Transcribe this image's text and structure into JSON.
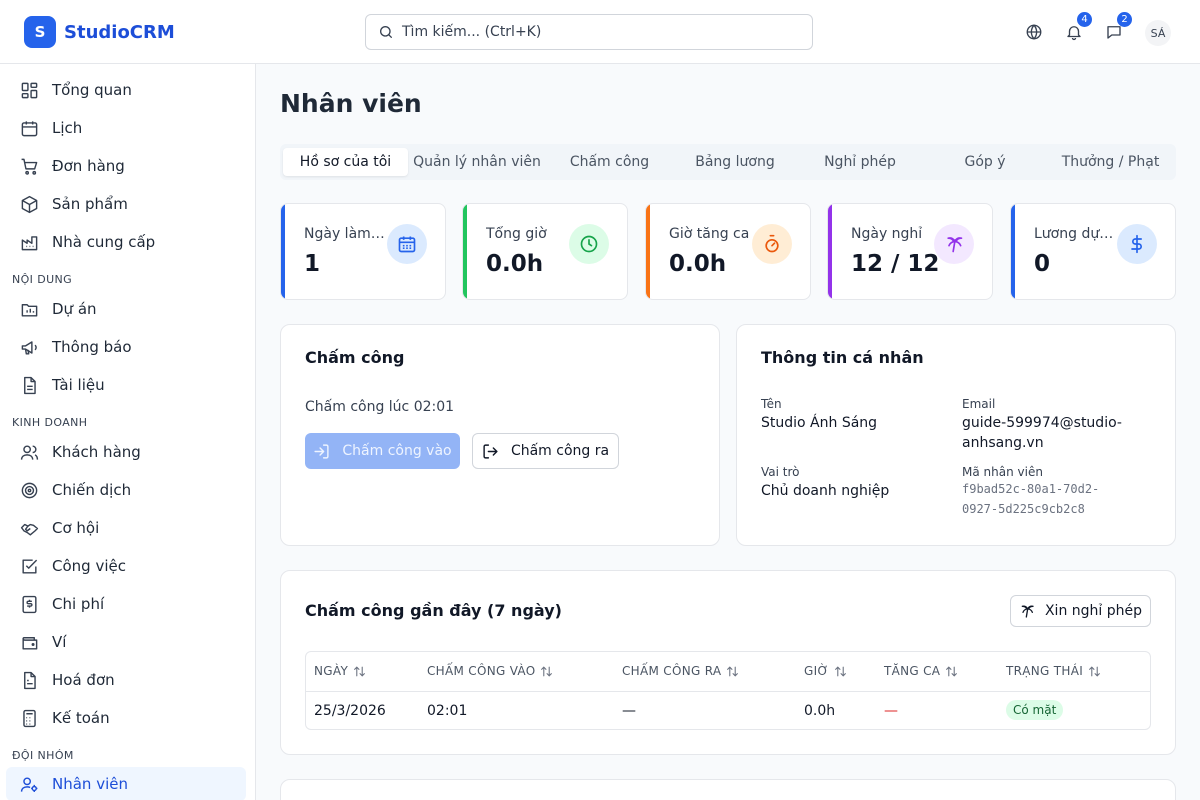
{
  "app": {
    "logo_letter": "S",
    "name": "StudioCRM"
  },
  "search": {
    "placeholder": "Tìm kiếm... (Ctrl+K)"
  },
  "header": {
    "notifications_count": "4",
    "messages_count": "2",
    "avatar_initials": "SÁ",
    "icons": [
      "globe-icon",
      "bell-icon",
      "message-icon"
    ]
  },
  "sidebar": {
    "items_top": [
      {
        "label": "Tổng quan",
        "icon": "dashboard-icon"
      },
      {
        "label": "Lịch",
        "icon": "calendar-icon"
      },
      {
        "label": "Đơn hàng",
        "icon": "cart-icon"
      },
      {
        "label": "Sản phẩm",
        "icon": "box-icon"
      },
      {
        "label": "Nhà cung cấp",
        "icon": "factory-icon"
      }
    ],
    "section_content": "NỘI DUNG",
    "items_content": [
      {
        "label": "Dự án",
        "icon": "folder-chart-icon"
      },
      {
        "label": "Thông báo",
        "icon": "megaphone-icon"
      },
      {
        "label": "Tài liệu",
        "icon": "document-icon"
      }
    ],
    "section_business": "KINH DOANH",
    "items_business": [
      {
        "label": "Khách hàng",
        "icon": "users-icon"
      },
      {
        "label": "Chiến dịch",
        "icon": "target-icon"
      },
      {
        "label": "Cơ hội",
        "icon": "handshake-icon"
      },
      {
        "label": "Công việc",
        "icon": "checkbox-icon"
      },
      {
        "label": "Chi phí",
        "icon": "receipt-dollar-icon"
      },
      {
        "label": "Ví",
        "icon": "wallet-icon"
      },
      {
        "label": "Hoá đơn",
        "icon": "invoice-icon"
      },
      {
        "label": "Kế toán",
        "icon": "calculator-icon"
      }
    ],
    "section_team": "ĐỘI NHÓM",
    "items_team": [
      {
        "label": "Nhân viên",
        "icon": "user-cog-icon",
        "active": true
      }
    ]
  },
  "page": {
    "title": "Nhân viên"
  },
  "tabs": [
    "Hồ sơ của tôi",
    "Quản lý nhân viên",
    "Chấm công",
    "Bảng lương",
    "Nghỉ phép",
    "Góp ý",
    "Thưởng / Phạt"
  ],
  "stats": [
    {
      "label": "Ngày làm việc",
      "value": "1",
      "color": "#2563eb",
      "icon_bg": "#dbeafe",
      "icon": "calendar-days-icon"
    },
    {
      "label": "Tổng giờ",
      "value": "0.0h",
      "color": "#22c55e",
      "icon_bg": "#dcfce7",
      "icon": "clock-icon"
    },
    {
      "label": "Giờ tăng ca",
      "value": "0.0h",
      "color": "#f97316",
      "icon_bg": "#ffedd5",
      "icon": "timer-icon"
    },
    {
      "label": "Ngày nghỉ",
      "value": "12 / 12",
      "color": "#9333ea",
      "icon_bg": "#f3e8ff",
      "icon": "palm-tree-icon"
    },
    {
      "label": "Lương dự kiến",
      "value": "0",
      "color": "#2563eb",
      "icon_bg": "#dbeafe",
      "icon": "dollar-icon"
    }
  ],
  "checkin": {
    "title": "Chấm công",
    "status_text": "Chấm công lúc 02:01",
    "check_in_label": "Chấm công vào",
    "check_out_label": "Chấm công ra"
  },
  "profile": {
    "title": "Thông tin cá nhân",
    "name_label": "Tên",
    "name": "Studio Ánh Sáng",
    "email_label": "Email",
    "email_line1": "guide-599974@studio-",
    "email_line2": "anhsang.vn",
    "role_label": "Vai trò",
    "role": "Chủ doanh nghiệp",
    "employee_id_label": "Mã nhân viên",
    "employee_id_line1": "f9bad52c-80a1-70d2-",
    "employee_id_line2": "0927-5d225c9cb2c8"
  },
  "recent": {
    "title": "Chấm công gần đây (7 ngày)",
    "leave_button": "Xin nghỉ phép",
    "columns": [
      "NGÀY",
      "CHẤM CÔNG VÀO",
      "CHẤM CÔNG RA",
      "GIỜ",
      "TĂNG CA",
      "TRẠNG THÁI"
    ],
    "rows": [
      {
        "date": "25/3/2026",
        "check_in": "02:01",
        "check_out": "—",
        "hours": "0.0h",
        "overtime": "—",
        "status": "Có mặt"
      }
    ]
  }
}
